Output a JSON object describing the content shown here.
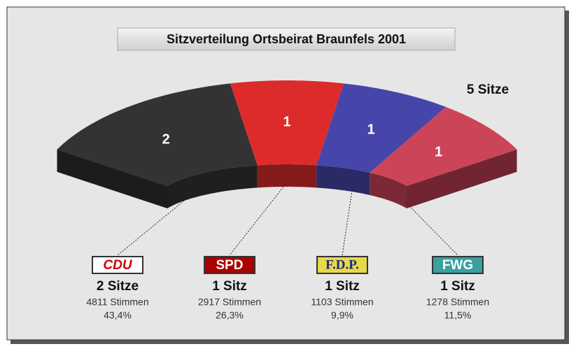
{
  "chart_data": {
    "type": "seat-arc",
    "title": "Sitzverteilung Ortsbeirat Braunfels 2001",
    "total": {
      "value": 5,
      "label": "5 Sitze"
    },
    "categories": [
      "CDU",
      "SPD",
      "F.D.P.",
      "FWG"
    ],
    "colors": [
      "#333333",
      "#dd2b2b",
      "#4646aa",
      "#cc4458"
    ],
    "seats": [
      2,
      1,
      1,
      1
    ],
    "seat_labels": [
      "2 Sitze",
      "1 Sitz",
      "1 Sitz",
      "1 Sitz"
    ],
    "votes": [
      4811,
      2917,
      1103,
      1278
    ],
    "vote_labels": [
      "4811 Stimmen",
      "2917 Stimmen",
      "1103 Stimmen",
      "1278 Stimmen"
    ],
    "shares": [
      43.4,
      26.3,
      9.9,
      11.5
    ],
    "share_labels": [
      "43,4%",
      "26,3%",
      "9,9%",
      "11,5%"
    ]
  }
}
